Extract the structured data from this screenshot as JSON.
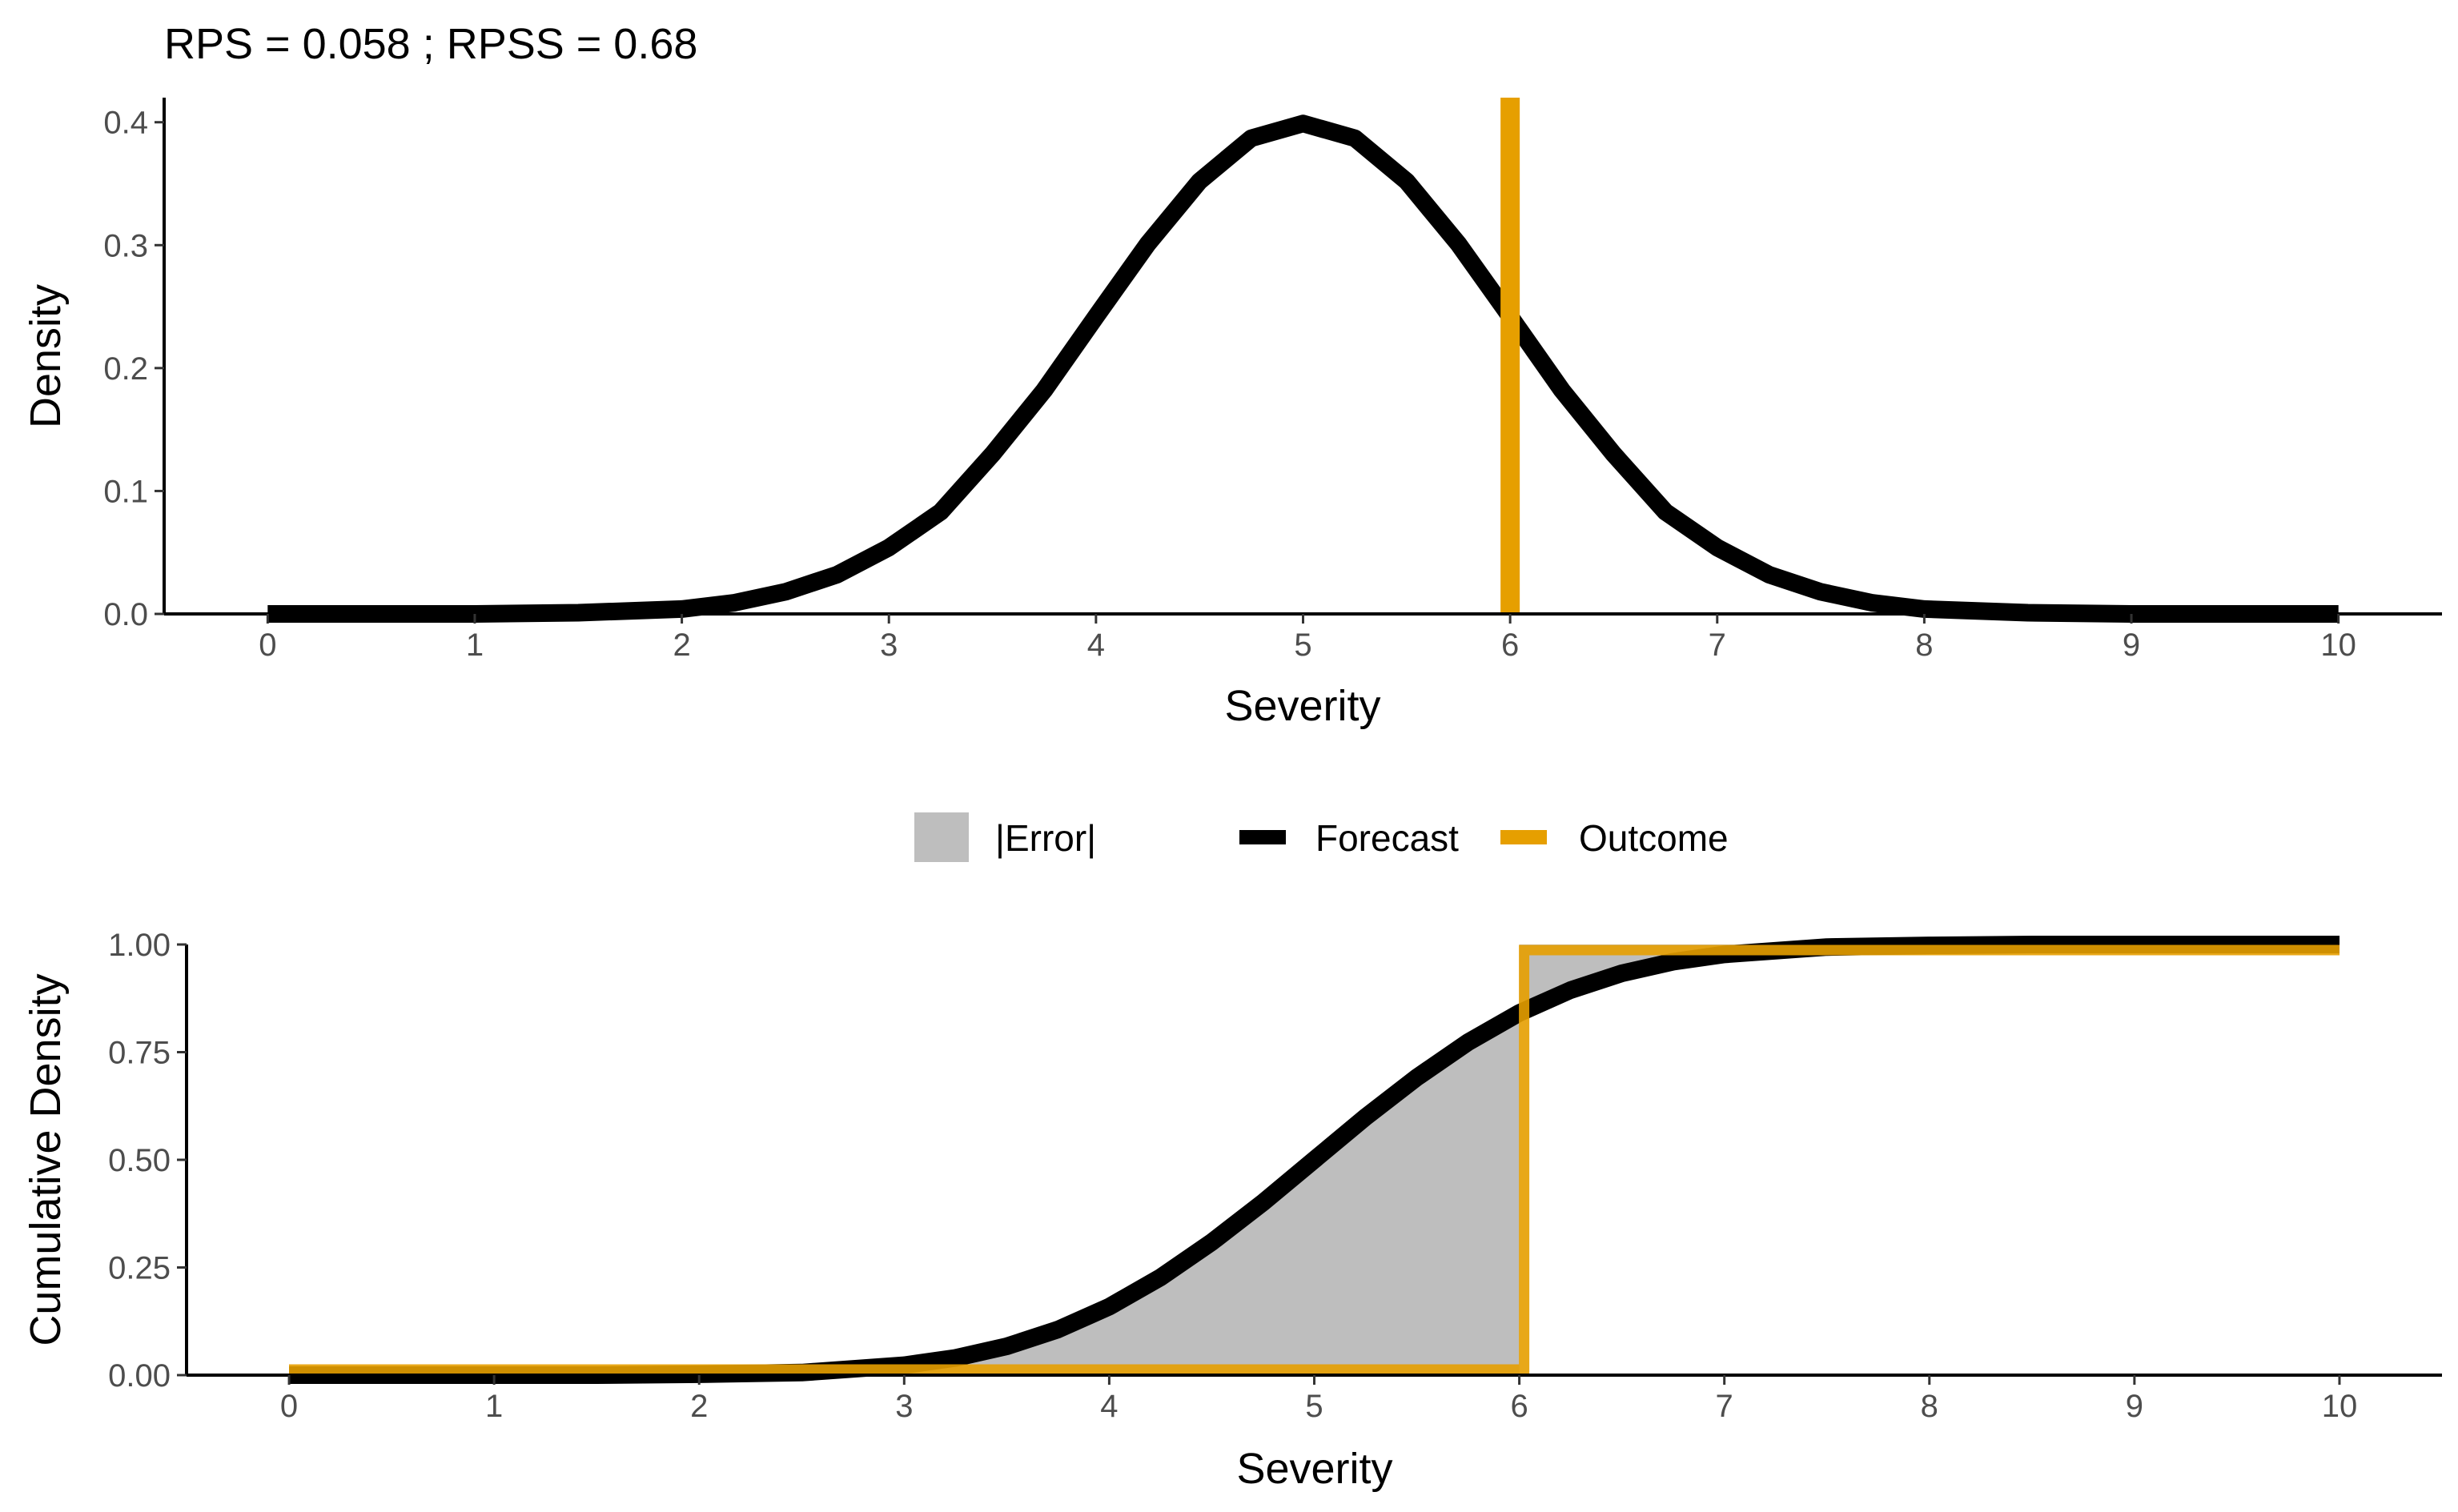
{
  "title": "RPS = 0.058 ; RPSS = 0.68",
  "colors": {
    "forecast": "#000000",
    "outcome": "#E69F00",
    "error_fill": "#BEBEBE",
    "axis": "#000000",
    "tick_text": "#4d4d4d"
  },
  "legend": {
    "position": "center, between panels",
    "items": [
      {
        "key": "error",
        "label": "|Error|"
      },
      {
        "key": "forecast",
        "label": "Forecast"
      },
      {
        "key": "outcome",
        "label": "Outcome"
      }
    ]
  },
  "chart_data": [
    {
      "type": "line",
      "xlabel": "Severity",
      "ylabel": "Density",
      "xlim": [
        -0.5,
        10.5
      ],
      "ylim": [
        0,
        0.42
      ],
      "x_ticks": [
        "0",
        "1",
        "2",
        "3",
        "4",
        "5",
        "6",
        "7",
        "8",
        "9",
        "10"
      ],
      "y_ticks": [
        "0.0",
        "0.1",
        "0.2",
        "0.3",
        "0.4"
      ],
      "grid": false,
      "series": [
        {
          "name": "Forecast",
          "color": "#000000",
          "x": [
            0,
            0.5,
            1,
            1.5,
            2,
            2.25,
            2.5,
            2.75,
            3,
            3.25,
            3.5,
            3.75,
            4,
            4.25,
            4.5,
            4.75,
            5,
            5.25,
            5.5,
            5.75,
            6,
            6.25,
            6.5,
            6.75,
            7,
            7.25,
            7.5,
            7.75,
            8,
            8.5,
            9,
            9.5,
            10
          ],
          "y": [
            0.0,
            0.0,
            0.0,
            0.001,
            0.004,
            0.009,
            0.018,
            0.032,
            0.054,
            0.083,
            0.13,
            0.182,
            0.242,
            0.301,
            0.352,
            0.387,
            0.399,
            0.387,
            0.352,
            0.301,
            0.242,
            0.182,
            0.13,
            0.083,
            0.054,
            0.032,
            0.018,
            0.009,
            0.004,
            0.001,
            0.0,
            0.0,
            0.0
          ]
        },
        {
          "name": "Outcome",
          "color": "#E69F00",
          "type": "vline",
          "x": 6
        }
      ]
    },
    {
      "type": "area",
      "xlabel": "Severity",
      "ylabel": "Cumulative Density",
      "xlim": [
        -0.5,
        10.5
      ],
      "ylim": [
        0,
        1
      ],
      "x_ticks": [
        "0",
        "1",
        "2",
        "3",
        "4",
        "5",
        "6",
        "7",
        "8",
        "9",
        "10"
      ],
      "y_ticks": [
        "0.00",
        "0.25",
        "0.50",
        "0.75",
        "1.00"
      ],
      "grid": false,
      "series": [
        {
          "name": "Forecast",
          "color": "#000000",
          "x": [
            0,
            0.5,
            1,
            1.5,
            2,
            2.5,
            3,
            3.25,
            3.5,
            3.75,
            4,
            4.25,
            4.5,
            4.75,
            5,
            5.25,
            5.5,
            5.75,
            6,
            6.25,
            6.5,
            6.75,
            7,
            7.5,
            8,
            8.5,
            9,
            10
          ],
          "y": [
            0.0,
            0.0,
            0.0,
            0.0,
            0.002,
            0.006,
            0.023,
            0.04,
            0.067,
            0.106,
            0.159,
            0.227,
            0.309,
            0.401,
            0.5,
            0.599,
            0.691,
            0.773,
            0.841,
            0.894,
            0.933,
            0.96,
            0.977,
            0.994,
            0.998,
            1.0,
            1.0,
            1.0
          ]
        },
        {
          "name": "Outcome",
          "color": "#E69F00",
          "x": [
            0,
            6,
            6,
            10
          ],
          "y": [
            0,
            0,
            1,
            1
          ]
        },
        {
          "name": "|Error|",
          "color": "#BEBEBE",
          "type": "fill_between_forecast_and_outcome"
        }
      ]
    }
  ]
}
